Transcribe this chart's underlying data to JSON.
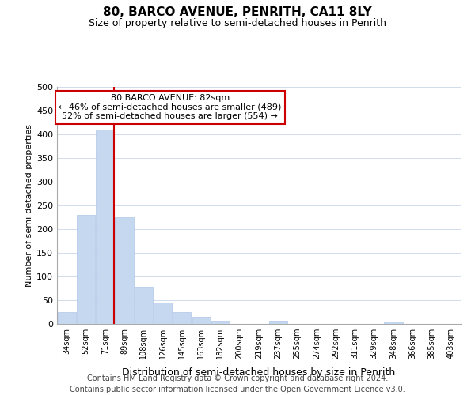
{
  "title": "80, BARCO AVENUE, PENRITH, CA11 8LY",
  "subtitle": "Size of property relative to semi-detached houses in Penrith",
  "xlabel": "Distribution of semi-detached houses by size in Penrith",
  "ylabel": "Number of semi-detached properties",
  "bar_values": [
    25,
    230,
    410,
    225,
    78,
    45,
    25,
    15,
    7,
    0,
    0,
    7,
    0,
    0,
    0,
    0,
    0,
    5,
    0,
    0,
    0
  ],
  "bar_labels": [
    "34sqm",
    "52sqm",
    "71sqm",
    "89sqm",
    "108sqm",
    "126sqm",
    "145sqm",
    "163sqm",
    "182sqm",
    "200sqm",
    "219sqm",
    "237sqm",
    "255sqm",
    "274sqm",
    "292sqm",
    "311sqm",
    "329sqm",
    "348sqm",
    "366sqm",
    "385sqm",
    "403sqm"
  ],
  "bar_color": "#c5d8f0",
  "bar_edge_color": "#aec6e8",
  "ylim": [
    0,
    500
  ],
  "yticks": [
    0,
    50,
    100,
    150,
    200,
    250,
    300,
    350,
    400,
    450,
    500
  ],
  "vline_x": 2.475,
  "vline_color": "#cc0000",
  "annotation_text": "80 BARCO AVENUE: 82sqm\n← 46% of semi-detached houses are smaller (489)\n52% of semi-detached houses are larger (554) →",
  "annotation_box_color": "#ffffff",
  "annotation_box_edge_color": "#cc0000",
  "grid_color": "#d0dcea",
  "background_color": "#ffffff",
  "title_fontsize": 11,
  "subtitle_fontsize": 9,
  "footer_text": "Contains HM Land Registry data © Crown copyright and database right 2024.\nContains public sector information licensed under the Open Government Licence v3.0.",
  "footer_fontsize": 7
}
